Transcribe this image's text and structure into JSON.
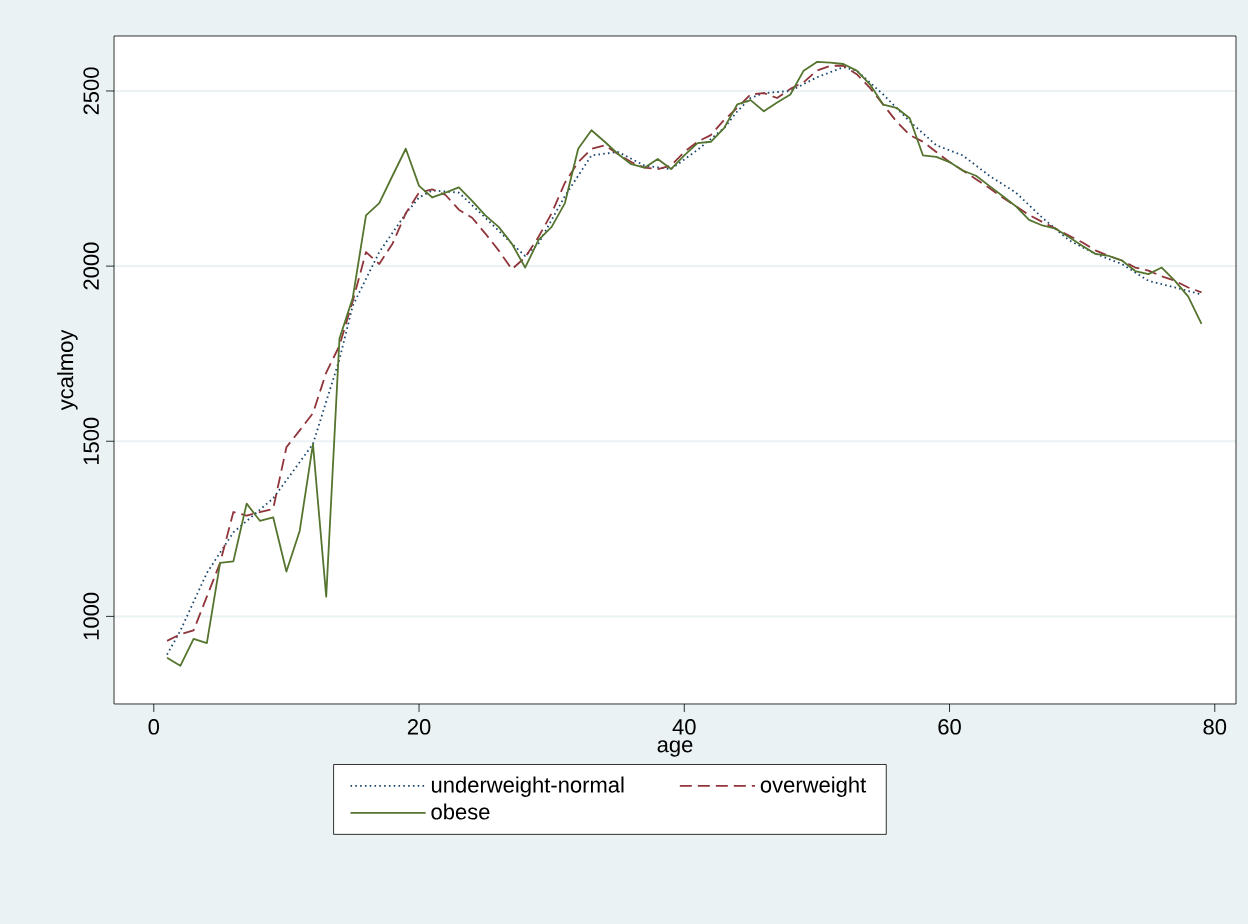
{
  "chart_data": {
    "type": "line",
    "xlabel": "age",
    "ylabel": "ycalmoy",
    "xlim": [
      -3,
      81.6
    ],
    "ylim": [
      750,
      2657
    ],
    "xticks": [
      0,
      20,
      40,
      60,
      80
    ],
    "yticks": [
      1000,
      1500,
      2000,
      2500
    ],
    "grid": "y",
    "legend": "bottom",
    "series": [
      {
        "name": "underweight-normal",
        "color": "#1a476f",
        "line_style": "dotted",
        "x": [
          1,
          2,
          4,
          6,
          9,
          12,
          14,
          15,
          17,
          19,
          20,
          21,
          23,
          25,
          27,
          28,
          29,
          31,
          33,
          35,
          37,
          39,
          41,
          43,
          44,
          45,
          46,
          48,
          50,
          52,
          53,
          55,
          57,
          59,
          61,
          63,
          65,
          67,
          69,
          71,
          73,
          75,
          77,
          79
        ],
        "values": [
          891,
          959,
          1124,
          1240,
          1337,
          1492,
          1734,
          1887,
          2040,
          2150,
          2196,
          2216,
          2210,
          2138,
          2064,
          2029,
          2064,
          2200,
          2316,
          2326,
          2287,
          2277,
          2332,
          2394,
          2442,
          2480,
          2494,
          2500,
          2539,
          2568,
          2558,
          2490,
          2413,
          2345,
          2316,
          2258,
          2210,
          2138,
          2074,
          2035,
          2006,
          1958,
          1939,
          1919
        ]
      },
      {
        "name": "overweight",
        "color": "#90353b",
        "line_style": "dashed",
        "x": [
          1,
          2,
          3,
          5,
          6,
          7,
          9,
          10,
          11,
          12,
          13,
          14,
          15,
          16,
          17,
          18,
          19,
          20,
          21,
          22,
          23,
          24,
          25,
          26,
          27,
          28,
          29,
          30,
          31,
          32,
          33,
          34,
          35,
          36,
          37,
          38,
          39,
          40,
          41,
          42,
          43,
          44,
          45,
          46,
          47,
          48,
          49,
          50,
          51,
          52,
          53,
          54,
          55,
          56,
          57,
          58,
          59,
          60,
          61,
          62,
          63,
          64,
          65,
          66,
          67,
          68,
          69,
          70,
          71,
          72,
          73,
          74,
          75,
          76,
          77,
          78,
          79
        ],
        "values": [
          930,
          949,
          960,
          1153,
          1298,
          1288,
          1307,
          1483,
          1531,
          1580,
          1696,
          1773,
          1900,
          2040,
          2006,
          2064,
          2151,
          2210,
          2219,
          2203,
          2161,
          2138,
          2093,
          2045,
          1991,
          2025,
          2083,
          2151,
          2238,
          2297,
          2335,
          2345,
          2320,
          2297,
          2281,
          2277,
          2287,
          2326,
          2355,
          2374,
          2417,
          2452,
          2490,
          2494,
          2480,
          2506,
          2525,
          2558,
          2572,
          2572,
          2548,
          2509,
          2461,
          2413,
          2374,
          2355,
          2326,
          2297,
          2273,
          2248,
          2223,
          2196,
          2171,
          2146,
          2126,
          2107,
          2087,
          2068,
          2045,
          2029,
          2016,
          1996,
          1987,
          1971,
          1958,
          1939,
          1925
        ]
      },
      {
        "name": "obese",
        "color": "#55752f",
        "line_style": "solid",
        "x": [
          1,
          2,
          3,
          4,
          5,
          6,
          7,
          8,
          9,
          10,
          11,
          12,
          13,
          14,
          15,
          16,
          17,
          18,
          19,
          20,
          21,
          22,
          23,
          24,
          25,
          26,
          27,
          28,
          29,
          30,
          31,
          32,
          33,
          34,
          35,
          36,
          37,
          38,
          39,
          40,
          41,
          42,
          43,
          44,
          45,
          46,
          47,
          48,
          49,
          50,
          51,
          52,
          53,
          54,
          55,
          56,
          57,
          58,
          59,
          60,
          61,
          62,
          63,
          64,
          65,
          66,
          67,
          68,
          69,
          70,
          71,
          72,
          73,
          74,
          75,
          76,
          77,
          78,
          79
        ],
        "values": [
          882,
          859,
          936,
          924,
          1153,
          1157,
          1322,
          1273,
          1283,
          1128,
          1244,
          1492,
          1056,
          1793,
          1909,
          2145,
          2180,
          2258,
          2335,
          2229,
          2196,
          2210,
          2225,
          2186,
          2145,
          2112,
          2064,
          1996,
          2074,
          2112,
          2180,
          2335,
          2388,
          2355,
          2320,
          2291,
          2281,
          2306,
          2277,
          2316,
          2351,
          2355,
          2394,
          2462,
          2474,
          2442,
          2467,
          2490,
          2558,
          2583,
          2581,
          2577,
          2558,
          2519,
          2461,
          2452,
          2422,
          2316,
          2312,
          2297,
          2273,
          2258,
          2229,
          2200,
          2171,
          2132,
          2116,
          2107,
          2083,
          2058,
          2035,
          2029,
          2016,
          1986,
          1977,
          1996,
          1958,
          1913,
          1835
        ]
      }
    ]
  }
}
